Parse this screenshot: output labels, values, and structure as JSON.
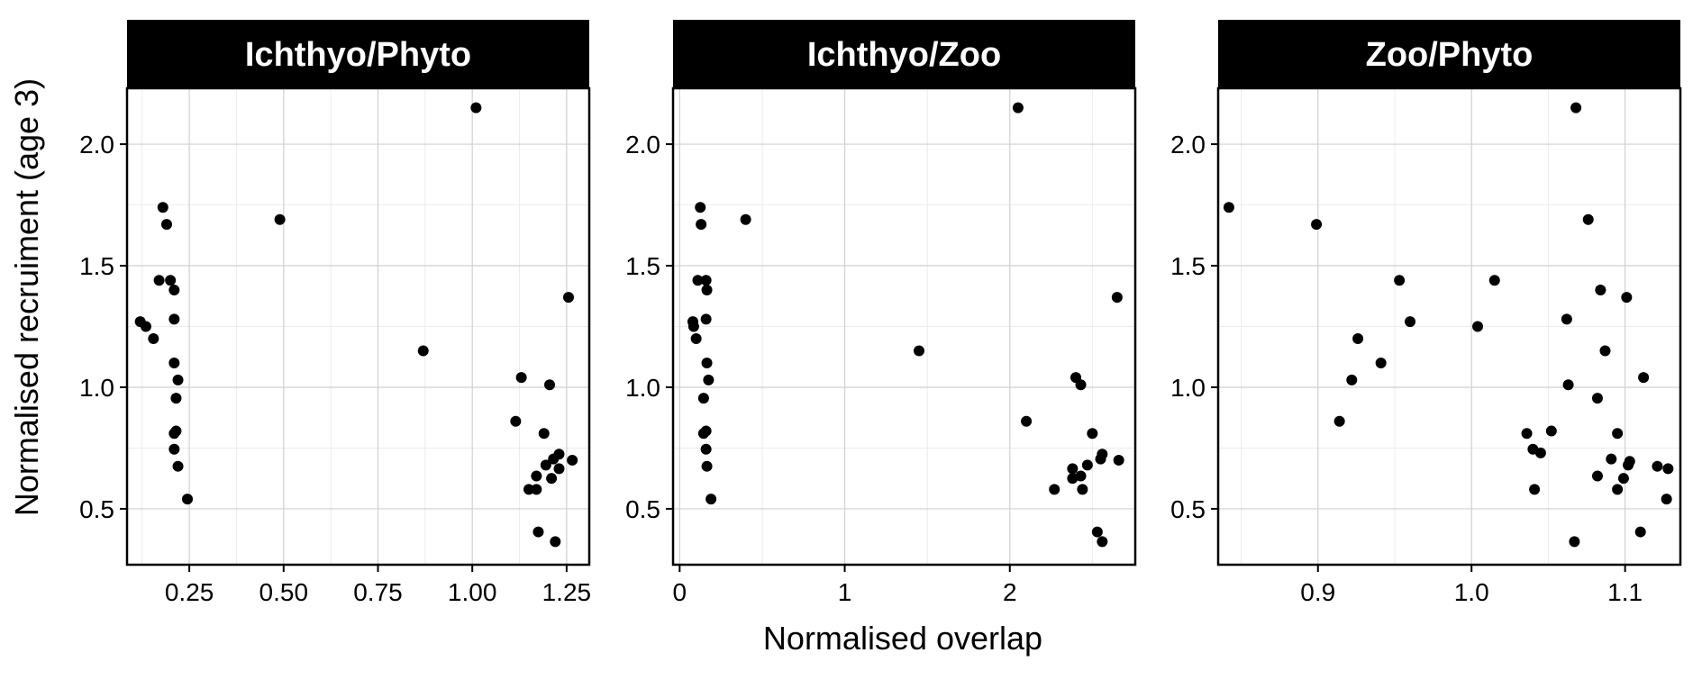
{
  "chart_data": {
    "type": "scatter",
    "facets": [
      "Ichthyo/Phyto",
      "Ichthyo/Zoo",
      "Zoo/Phyto"
    ],
    "xlabel": "Normalised overlap",
    "ylabel": "Normalised recruiment (age 3)",
    "ylim": [
      0.27,
      2.23
    ],
    "yticks": [
      0.5,
      1.0,
      1.5,
      2.0
    ],
    "ytick_labels": [
      "0.5",
      "1.0",
      "1.5",
      "2.0"
    ],
    "marker_color": "#000000",
    "strip_color": "#000000",
    "panels": [
      {
        "title": "Ichthyo/Phyto",
        "xlim": [
          0.085,
          1.31
        ],
        "xticks": [
          0.25,
          0.5,
          0.75,
          1.0,
          1.25
        ],
        "xtick_labels": [
          "0.25",
          "0.50",
          "0.75",
          "1.00",
          "1.25"
        ],
        "points": [
          {
            "x": 1.01,
            "y": 2.15
          },
          {
            "x": 0.18,
            "y": 1.74
          },
          {
            "x": 0.19,
            "y": 1.67
          },
          {
            "x": 0.49,
            "y": 1.69
          },
          {
            "x": 0.17,
            "y": 1.44
          },
          {
            "x": 0.2,
            "y": 1.44
          },
          {
            "x": 0.21,
            "y": 1.4
          },
          {
            "x": 0.21,
            "y": 1.28
          },
          {
            "x": 0.12,
            "y": 1.27
          },
          {
            "x": 0.135,
            "y": 1.25
          },
          {
            "x": 0.155,
            "y": 1.2
          },
          {
            "x": 0.21,
            "y": 1.1
          },
          {
            "x": 0.22,
            "y": 1.03
          },
          {
            "x": 0.215,
            "y": 0.955
          },
          {
            "x": 0.215,
            "y": 0.82
          },
          {
            "x": 0.21,
            "y": 0.81
          },
          {
            "x": 0.21,
            "y": 0.745
          },
          {
            "x": 0.22,
            "y": 0.675
          },
          {
            "x": 0.245,
            "y": 0.54
          },
          {
            "x": 1.255,
            "y": 1.37
          },
          {
            "x": 0.87,
            "y": 1.15
          },
          {
            "x": 1.13,
            "y": 1.04
          },
          {
            "x": 1.205,
            "y": 1.01
          },
          {
            "x": 1.115,
            "y": 0.86
          },
          {
            "x": 1.19,
            "y": 0.81
          },
          {
            "x": 1.23,
            "y": 0.725
          },
          {
            "x": 1.215,
            "y": 0.705
          },
          {
            "x": 1.265,
            "y": 0.7
          },
          {
            "x": 1.195,
            "y": 0.68
          },
          {
            "x": 1.23,
            "y": 0.665
          },
          {
            "x": 1.17,
            "y": 0.635
          },
          {
            "x": 1.21,
            "y": 0.625
          },
          {
            "x": 1.15,
            "y": 0.58
          },
          {
            "x": 1.17,
            "y": 0.58
          },
          {
            "x": 1.175,
            "y": 0.405
          },
          {
            "x": 1.22,
            "y": 0.365
          }
        ]
      },
      {
        "title": "Ichthyo/Zoo",
        "xlim": [
          -0.04,
          2.76
        ],
        "xticks": [
          0,
          1,
          2
        ],
        "xtick_labels": [
          "0",
          "1",
          "2"
        ],
        "points": [
          {
            "x": 2.05,
            "y": 2.15
          },
          {
            "x": 0.125,
            "y": 1.74
          },
          {
            "x": 0.13,
            "y": 1.67
          },
          {
            "x": 0.4,
            "y": 1.69
          },
          {
            "x": 0.11,
            "y": 1.44
          },
          {
            "x": 0.16,
            "y": 1.44
          },
          {
            "x": 0.165,
            "y": 1.4
          },
          {
            "x": 0.16,
            "y": 1.28
          },
          {
            "x": 0.08,
            "y": 1.27
          },
          {
            "x": 0.085,
            "y": 1.25
          },
          {
            "x": 0.1,
            "y": 1.2
          },
          {
            "x": 0.165,
            "y": 1.1
          },
          {
            "x": 0.175,
            "y": 1.03
          },
          {
            "x": 0.145,
            "y": 0.955
          },
          {
            "x": 0.16,
            "y": 0.82
          },
          {
            "x": 0.145,
            "y": 0.81
          },
          {
            "x": 0.16,
            "y": 0.745
          },
          {
            "x": 0.165,
            "y": 0.675
          },
          {
            "x": 0.19,
            "y": 0.54
          },
          {
            "x": 2.65,
            "y": 1.37
          },
          {
            "x": 1.45,
            "y": 1.15
          },
          {
            "x": 2.4,
            "y": 1.04
          },
          {
            "x": 2.43,
            "y": 1.01
          },
          {
            "x": 2.1,
            "y": 0.86
          },
          {
            "x": 2.5,
            "y": 0.81
          },
          {
            "x": 2.56,
            "y": 0.725
          },
          {
            "x": 2.55,
            "y": 0.705
          },
          {
            "x": 2.66,
            "y": 0.7
          },
          {
            "x": 2.47,
            "y": 0.68
          },
          {
            "x": 2.38,
            "y": 0.665
          },
          {
            "x": 2.43,
            "y": 0.635
          },
          {
            "x": 2.38,
            "y": 0.625
          },
          {
            "x": 2.27,
            "y": 0.58
          },
          {
            "x": 2.44,
            "y": 0.58
          },
          {
            "x": 2.53,
            "y": 0.405
          },
          {
            "x": 2.56,
            "y": 0.365
          }
        ]
      },
      {
        "title": "Zoo/Phyto",
        "xlim": [
          0.835,
          1.136
        ],
        "xticks": [
          0.9,
          1.0,
          1.1
        ],
        "xtick_labels": [
          "0.9",
          "1.0",
          "1.1"
        ],
        "points": [
          {
            "x": 1.068,
            "y": 2.15
          },
          {
            "x": 0.842,
            "y": 1.74
          },
          {
            "x": 0.899,
            "y": 1.67
          },
          {
            "x": 1.076,
            "y": 1.69
          },
          {
            "x": 0.953,
            "y": 1.44
          },
          {
            "x": 1.015,
            "y": 1.44
          },
          {
            "x": 1.084,
            "y": 1.4
          },
          {
            "x": 1.101,
            "y": 1.37
          },
          {
            "x": 1.062,
            "y": 1.28
          },
          {
            "x": 0.96,
            "y": 1.27
          },
          {
            "x": 1.004,
            "y": 1.25
          },
          {
            "x": 0.926,
            "y": 1.2
          },
          {
            "x": 1.087,
            "y": 1.15
          },
          {
            "x": 0.941,
            "y": 1.1
          },
          {
            "x": 1.112,
            "y": 1.04
          },
          {
            "x": 0.922,
            "y": 1.03
          },
          {
            "x": 1.063,
            "y": 1.01
          },
          {
            "x": 1.082,
            "y": 0.955
          },
          {
            "x": 0.914,
            "y": 0.86
          },
          {
            "x": 1.052,
            "y": 0.82
          },
          {
            "x": 1.036,
            "y": 0.81
          },
          {
            "x": 1.095,
            "y": 0.81
          },
          {
            "x": 1.04,
            "y": 0.745
          },
          {
            "x": 1.045,
            "y": 0.73
          },
          {
            "x": 1.091,
            "y": 0.705
          },
          {
            "x": 1.103,
            "y": 0.695
          },
          {
            "x": 1.102,
            "y": 0.68
          },
          {
            "x": 1.121,
            "y": 0.675
          },
          {
            "x": 1.128,
            "y": 0.665
          },
          {
            "x": 1.082,
            "y": 0.635
          },
          {
            "x": 1.099,
            "y": 0.625
          },
          {
            "x": 1.041,
            "y": 0.58
          },
          {
            "x": 1.095,
            "y": 0.58
          },
          {
            "x": 1.127,
            "y": 0.54
          },
          {
            "x": 1.11,
            "y": 0.405
          },
          {
            "x": 1.067,
            "y": 0.365
          }
        ]
      }
    ]
  }
}
